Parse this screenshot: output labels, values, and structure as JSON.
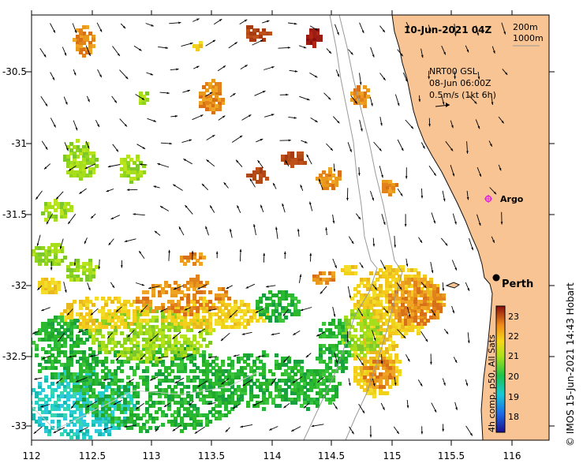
{
  "header": {
    "date": "10-Jun-2021 04Z",
    "depth_200": "200m",
    "depth_1000": "1000m"
  },
  "current_box": {
    "line1": "NRT00 GSL",
    "line2": "08-Jun 06:00Z",
    "line3": "0.5m/s (1kt 6h)"
  },
  "axes": {
    "lon_ticks": [
      "112",
      "112.5",
      "113",
      "113.5",
      "114",
      "114.5",
      "115",
      "115.5",
      "116"
    ],
    "lat_ticks": [
      "-30.5",
      "-31",
      "-31.5",
      "-32",
      "-32.5",
      "-33"
    ]
  },
  "places": {
    "argo": "Argo",
    "perth": "Perth"
  },
  "colorbar": {
    "ticks": [
      "23",
      "22",
      "21",
      "20",
      "19",
      "18"
    ],
    "label": "4h comp, p50, All Sats"
  },
  "credit": "© IMOS 15-Jun-2021 14:43 Hobart",
  "colors": {
    "land": "#f8c493",
    "arrow": "#000000",
    "isobath": "#9a9a9a"
  }
}
